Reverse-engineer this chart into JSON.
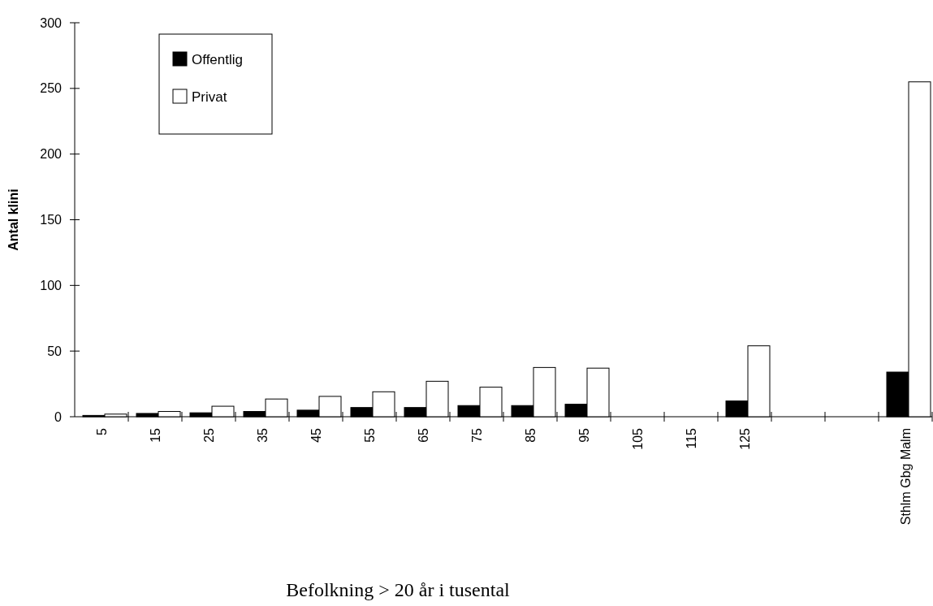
{
  "chart_data": {
    "type": "bar",
    "ylabel": "Antal klini",
    "xlabel": "Befolkning > 20 år i tusental",
    "categories": [
      "5",
      "15",
      "25",
      "35",
      "45",
      "55",
      "65",
      "75",
      "85",
      "95",
      "105",
      "115",
      "125",
      null,
      null,
      "Sthlm Gbg Malm"
    ],
    "series": [
      {
        "name": "Offentlig",
        "color": "#000000",
        "values": [
          1,
          2.5,
          3,
          4,
          5,
          7,
          7,
          8.5,
          8.5,
          9.5,
          null,
          null,
          12,
          null,
          null,
          34
        ]
      },
      {
        "name": "Privat",
        "color": "#ffffff",
        "values": [
          2,
          4,
          8,
          13.5,
          15.5,
          19,
          27,
          22.5,
          37.5,
          37,
          null,
          null,
          54,
          null,
          null,
          255
        ]
      }
    ],
    "ylim": [
      0,
      300
    ],
    "yticks": [
      0,
      50,
      100,
      150,
      200,
      250,
      300
    ],
    "grid": false,
    "legend": "top left"
  }
}
